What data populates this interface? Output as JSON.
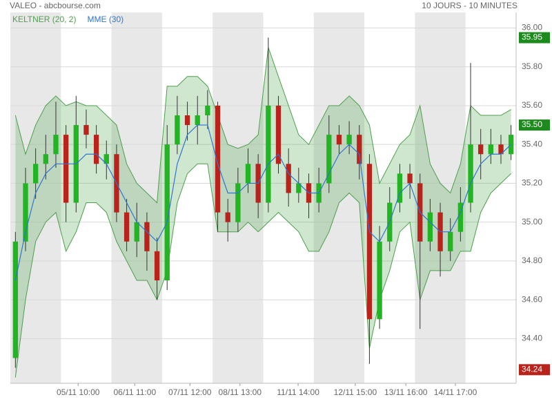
{
  "chart_data": {
    "type": "candlestick",
    "title": "VALEO - abcbourse.com",
    "subtitle": "10 JOURS - 10 MINUTES",
    "up_color": "#22b422",
    "down_color": "#b8231c",
    "x": [
      0.1,
      0.3,
      0.5,
      0.7,
      0.9,
      1.1,
      1.3,
      1.5,
      1.7,
      1.9,
      2.1,
      2.3,
      2.5,
      2.7,
      2.9,
      3.1,
      3.3,
      3.5,
      3.7,
      3.9,
      4.1,
      4.3,
      4.5,
      4.7,
      4.9,
      5.1,
      5.3,
      5.5,
      5.7,
      5.9,
      6.1,
      6.3,
      6.5,
      6.7,
      6.9,
      7.1,
      7.3,
      7.5,
      7.7,
      7.9,
      8.1,
      8.3,
      8.5,
      8.7,
      8.9,
      9.1,
      9.3,
      9.5,
      9.7,
      9.9
    ],
    "open": [
      34.3,
      34.9,
      35.2,
      35.3,
      35.35,
      35.45,
      35.1,
      35.5,
      35.45,
      35.3,
      35.35,
      35.05,
      34.9,
      35.0,
      34.85,
      34.7,
      35.4,
      35.55,
      35.5,
      35.55,
      35.6,
      35.05,
      35.0,
      35.2,
      35.3,
      35.1,
      35.6,
      35.3,
      35.15,
      35.2,
      35.1,
      35.2,
      35.45,
      35.4,
      35.45,
      35.3,
      34.5,
      34.9,
      35.1,
      35.25,
      35.2,
      34.9,
      35.05,
      34.85,
      34.95,
      35.1,
      35.4,
      35.35,
      35.4,
      35.35
    ],
    "high": [
      34.95,
      35.28,
      35.38,
      35.45,
      35.62,
      35.5,
      35.65,
      35.58,
      35.5,
      35.42,
      35.4,
      35.12,
      35.1,
      35.05,
      34.92,
      35.5,
      35.65,
      35.62,
      35.65,
      35.68,
      35.62,
      35.12,
      35.28,
      35.38,
      35.35,
      35.95,
      35.65,
      35.38,
      35.28,
      35.25,
      35.28,
      35.55,
      35.5,
      35.52,
      35.5,
      35.35,
      34.98,
      35.18,
      35.3,
      35.3,
      35.25,
      35.12,
      35.1,
      35.02,
      35.18,
      35.82,
      35.48,
      35.48,
      35.45,
      35.5
    ],
    "low": [
      34.25,
      34.85,
      35.12,
      35.22,
      35.28,
      35.0,
      35.05,
      35.38,
      35.25,
      35.22,
      35.0,
      34.85,
      34.82,
      34.75,
      34.6,
      34.65,
      35.35,
      35.42,
      35.4,
      35.48,
      34.95,
      34.9,
      34.95,
      35.15,
      35.02,
      35.05,
      35.25,
      35.08,
      35.1,
      35.02,
      35.05,
      35.15,
      35.35,
      35.35,
      35.22,
      34.27,
      34.45,
      34.85,
      35.05,
      35.12,
      34.45,
      34.85,
      34.72,
      34.8,
      34.9,
      35.05,
      35.22,
      35.3,
      35.3,
      35.32
    ],
    "close": [
      34.9,
      35.2,
      35.3,
      35.35,
      35.45,
      35.1,
      35.5,
      35.45,
      35.3,
      35.35,
      35.05,
      34.9,
      35.0,
      34.85,
      34.7,
      35.4,
      35.55,
      35.5,
      35.55,
      35.6,
      35.05,
      35.0,
      35.2,
      35.3,
      35.1,
      35.6,
      35.3,
      35.15,
      35.2,
      35.1,
      35.2,
      35.45,
      35.4,
      35.45,
      35.3,
      34.5,
      34.9,
      35.1,
      35.25,
      35.2,
      34.9,
      35.05,
      34.85,
      34.95,
      35.1,
      35.4,
      35.35,
      35.4,
      35.35,
      35.45
    ],
    "series": [
      {
        "name": "KELTNER (20, 2)",
        "color": "#4e9e4e",
        "upper": [
          35.55,
          35.35,
          35.5,
          35.6,
          35.65,
          35.6,
          35.62,
          35.6,
          35.6,
          35.55,
          35.5,
          35.3,
          35.2,
          35.15,
          35.1,
          35.7,
          35.7,
          35.75,
          35.75,
          35.7,
          35.55,
          35.4,
          35.38,
          35.4,
          35.45,
          35.9,
          35.75,
          35.6,
          35.45,
          35.4,
          35.5,
          35.6,
          35.6,
          35.65,
          35.6,
          35.5,
          35.2,
          35.3,
          35.4,
          35.45,
          35.6,
          35.3,
          35.2,
          35.15,
          35.3,
          35.6,
          35.55,
          35.55,
          35.55,
          35.58
        ],
        "lower": [
          34.2,
          34.6,
          34.9,
          35.0,
          35.05,
          34.85,
          34.95,
          35.1,
          35.1,
          35.05,
          34.9,
          34.8,
          34.7,
          34.7,
          34.6,
          34.75,
          35.1,
          35.25,
          35.3,
          35.3,
          34.95,
          34.95,
          34.95,
          35.0,
          34.95,
          35.0,
          35.05,
          35.0,
          34.95,
          34.85,
          34.85,
          34.95,
          35.1,
          35.15,
          35.1,
          34.35,
          34.6,
          34.75,
          34.95,
          35.0,
          34.6,
          34.75,
          34.75,
          34.75,
          34.85,
          34.85,
          35.05,
          35.15,
          35.2,
          35.25
        ]
      },
      {
        "name": "MME (30)",
        "color": "#2f74d0",
        "values": [
          34.7,
          34.95,
          35.15,
          35.25,
          35.3,
          35.3,
          35.3,
          35.35,
          35.35,
          35.3,
          35.2,
          35.1,
          35.0,
          34.95,
          34.9,
          35.0,
          35.3,
          35.45,
          35.5,
          35.5,
          35.3,
          35.15,
          35.15,
          35.2,
          35.2,
          35.3,
          35.35,
          35.25,
          35.2,
          35.15,
          35.15,
          35.25,
          35.35,
          35.4,
          35.35,
          34.95,
          34.9,
          35.0,
          35.15,
          35.2,
          35.05,
          35.0,
          34.95,
          34.95,
          35.05,
          35.2,
          35.3,
          35.35,
          35.35,
          35.4
        ]
      }
    ],
    "xlim": [
      0,
      10
    ],
    "xticks": [
      {
        "value": 1.34,
        "label": "05/11 10:00"
      },
      {
        "value": 2.46,
        "label": "06/11 11:00"
      },
      {
        "value": 3.55,
        "label": "07/11 12:00"
      },
      {
        "value": 4.54,
        "label": "08/11 13:00"
      },
      {
        "value": 5.69,
        "label": "11/11 14:00"
      },
      {
        "value": 6.82,
        "label": "12/11 15:00"
      },
      {
        "value": 7.82,
        "label": "13/11 16:00"
      },
      {
        "value": 8.8,
        "label": "14/11 17:00"
      }
    ],
    "ylim": [
      34.17,
      36.08
    ],
    "yticks": [
      {
        "value": 34.4,
        "label": "34.40"
      },
      {
        "value": 34.6,
        "label": "34.60"
      },
      {
        "value": 34.8,
        "label": "34.80"
      },
      {
        "value": 35.0,
        "label": "35.00"
      },
      {
        "value": 35.2,
        "label": "35.20"
      },
      {
        "value": 35.4,
        "label": "35.40"
      },
      {
        "value": 35.6,
        "label": "35.60"
      },
      {
        "value": 35.8,
        "label": "35.80"
      },
      {
        "value": 36.0,
        "label": "36.00"
      }
    ],
    "price_markers": [
      {
        "value": 35.95,
        "color": "#1d8a1d"
      },
      {
        "value": {
          "value": 35.5,
          "label": "35.50"
        },
        "color": "#1d8a1d"
      },
      {
        "value": 34.24,
        "color": "#b8231c"
      }
    ],
    "grid": true
  }
}
